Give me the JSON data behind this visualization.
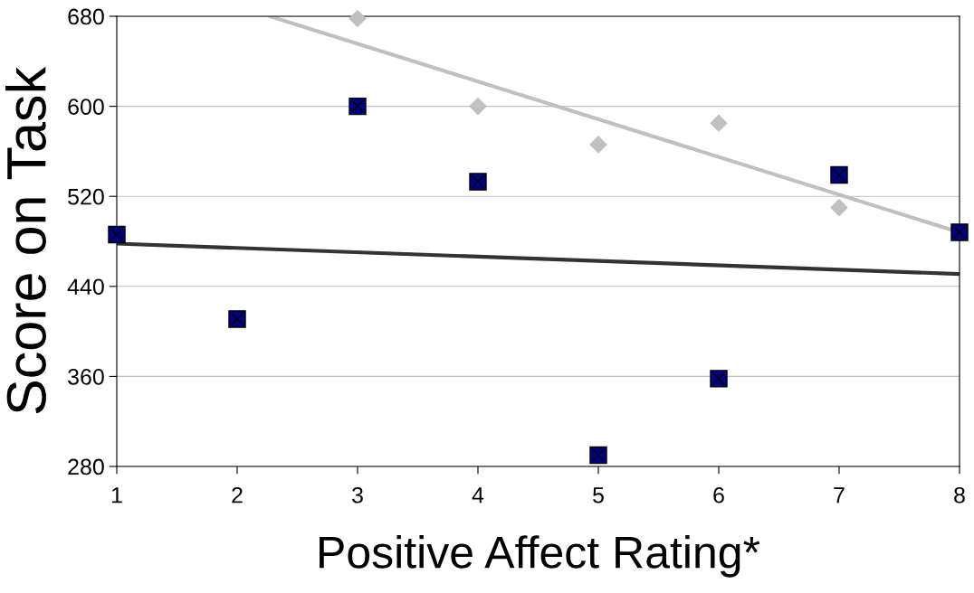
{
  "chart_data": {
    "type": "scatter",
    "xlabel": "Positive Affect Rating*",
    "ylabel": "Score on Task",
    "x": [
      1,
      2,
      3,
      4,
      5,
      6,
      7,
      8
    ],
    "series": [
      {
        "color": "#c0c0c0",
        "marker": "diamond",
        "values": [
          null,
          null,
          678,
          600,
          566,
          585,
          510,
          null
        ]
      },
      {
        "color": "#000080",
        "marker": "square",
        "values": [
          486,
          411,
          600,
          533,
          290,
          358,
          539,
          488
        ]
      },
      {
        "type": "line",
        "color": "#c0c0c0",
        "x": [
          2.27,
          8
        ],
        "values": [
          680,
          488
        ]
      },
      {
        "type": "line",
        "color": "#333333",
        "x": [
          1,
          8
        ],
        "values": [
          478,
          451
        ]
      }
    ],
    "xlim": [
      1,
      8
    ],
    "ylim": [
      280,
      680
    ],
    "xticks": [
      1,
      2,
      3,
      4,
      5,
      6,
      7,
      8
    ],
    "yticks": [
      280,
      360,
      440,
      520,
      600,
      680
    ],
    "grid": "y"
  }
}
